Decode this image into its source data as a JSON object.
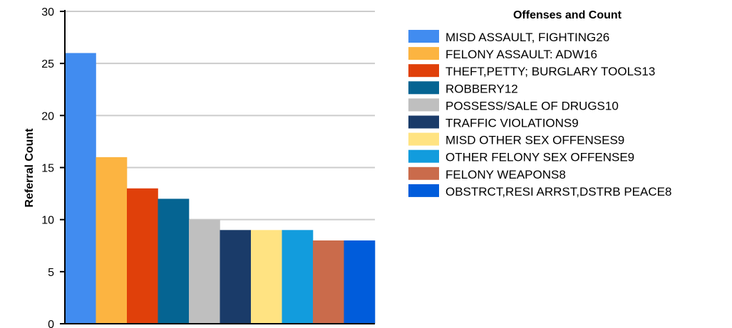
{
  "chart_data": {
    "type": "bar",
    "ylabel": "Referral Count",
    "xlabel": "",
    "ylim": [
      0,
      30
    ],
    "yticks": [
      0,
      5,
      10,
      15,
      20,
      25,
      30
    ],
    "grid": true,
    "legend_position": "right",
    "legend_title": "Offenses and Count",
    "categories": [
      "MISD ASSAULT, FIGHTING",
      "FELONY ASSAULT: ADW",
      "THEFT,PETTY; BURGLARY TOOLS",
      "ROBBERY",
      "POSSESS/SALE OF DRUGS",
      "TRAFFIC VIOLATIONS",
      "MISD OTHER SEX OFFENSES",
      "OTHER FELONY SEX OFFENSE",
      "FELONY WEAPONS",
      "OBSTRCT,RESI ARRST,DSTRB PEACE"
    ],
    "values": [
      26,
      16,
      13,
      12,
      10,
      9,
      9,
      9,
      8,
      8
    ],
    "legend_labels": [
      "MISD ASSAULT, FIGHTING26",
      "FELONY ASSAULT: ADW16",
      "THEFT,PETTY; BURGLARY TOOLS13",
      "ROBBERY12",
      "POSSESS/SALE OF DRUGS10",
      "TRAFFIC VIOLATIONS9",
      "MISD OTHER SEX OFFENSES9",
      "OTHER FELONY SEX OFFENSE9",
      "FELONY WEAPONS8",
      "OBSTRCT,RESI ARRST,DSTRB PEACE8"
    ],
    "colors": [
      "#418cf0",
      "#fcb441",
      "#e0400a",
      "#056492",
      "#bfbfbf",
      "#1a3b69",
      "#ffe382",
      "#129cdd",
      "#ca6b4b",
      "#005cdb"
    ]
  }
}
